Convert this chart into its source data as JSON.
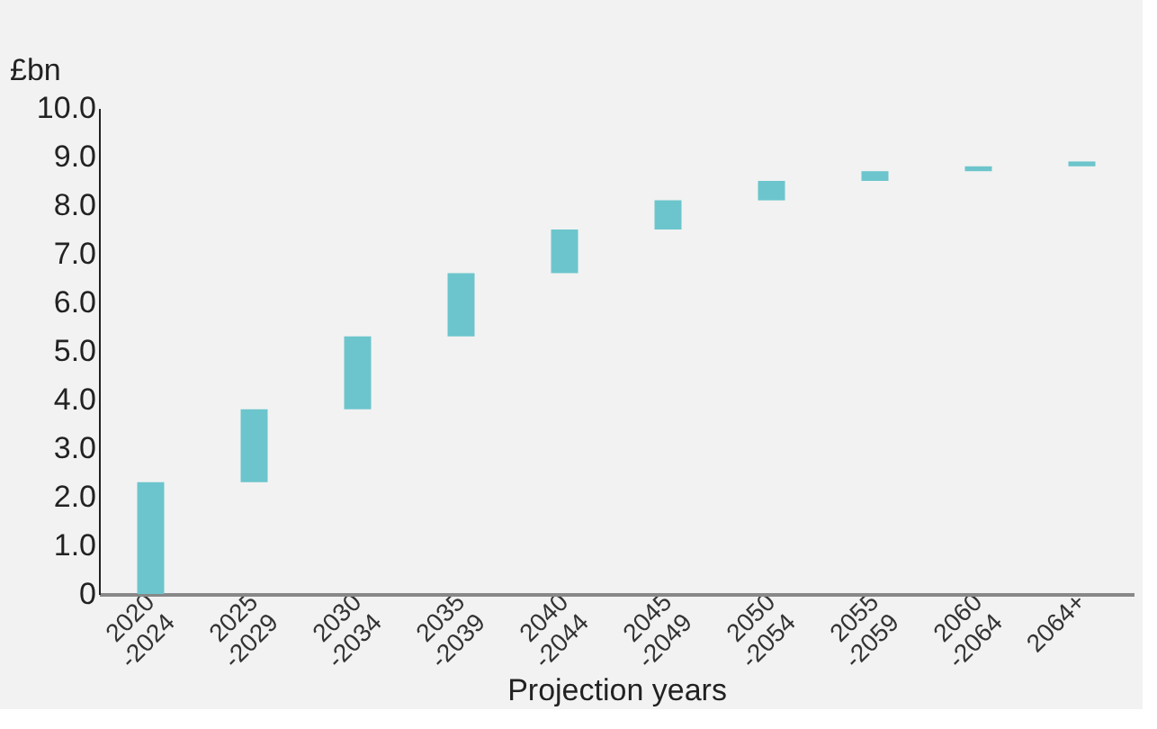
{
  "chart_data": {
    "type": "bar",
    "ylabel": "£bn",
    "xlabel": "Projection years",
    "categories": [
      "2020 -2024",
      "2025 -2029",
      "2030 -2034",
      "2035 -2039",
      "2040 -2044",
      "2045 -2049",
      "2050 -2054",
      "2055 -2059",
      "2060 -2064",
      "2064+"
    ],
    "values": [
      2.3,
      1.5,
      1.5,
      1.3,
      0.9,
      0.6,
      0.4,
      0.2,
      0.1,
      0.1
    ],
    "base": [
      0,
      2.3,
      3.8,
      5.3,
      6.6,
      7.5,
      8.1,
      8.5,
      8.7,
      8.8
    ],
    "color": "#6cc5cc",
    "ylim": [
      0,
      10
    ],
    "yticks": [
      {
        "value": 0,
        "label": "0"
      },
      {
        "value": 1,
        "label": "1.0"
      },
      {
        "value": 2,
        "label": "2.0"
      },
      {
        "value": 3,
        "label": "3.0"
      },
      {
        "value": 4,
        "label": "4.0"
      },
      {
        "value": 5,
        "label": "5.0"
      },
      {
        "value": 6,
        "label": "6.0"
      },
      {
        "value": 7,
        "label": "7.0"
      },
      {
        "value": 8,
        "label": "8.0"
      },
      {
        "value": 9,
        "label": "9.0"
      },
      {
        "value": 10,
        "label": "10.0"
      }
    ],
    "grid": false
  }
}
